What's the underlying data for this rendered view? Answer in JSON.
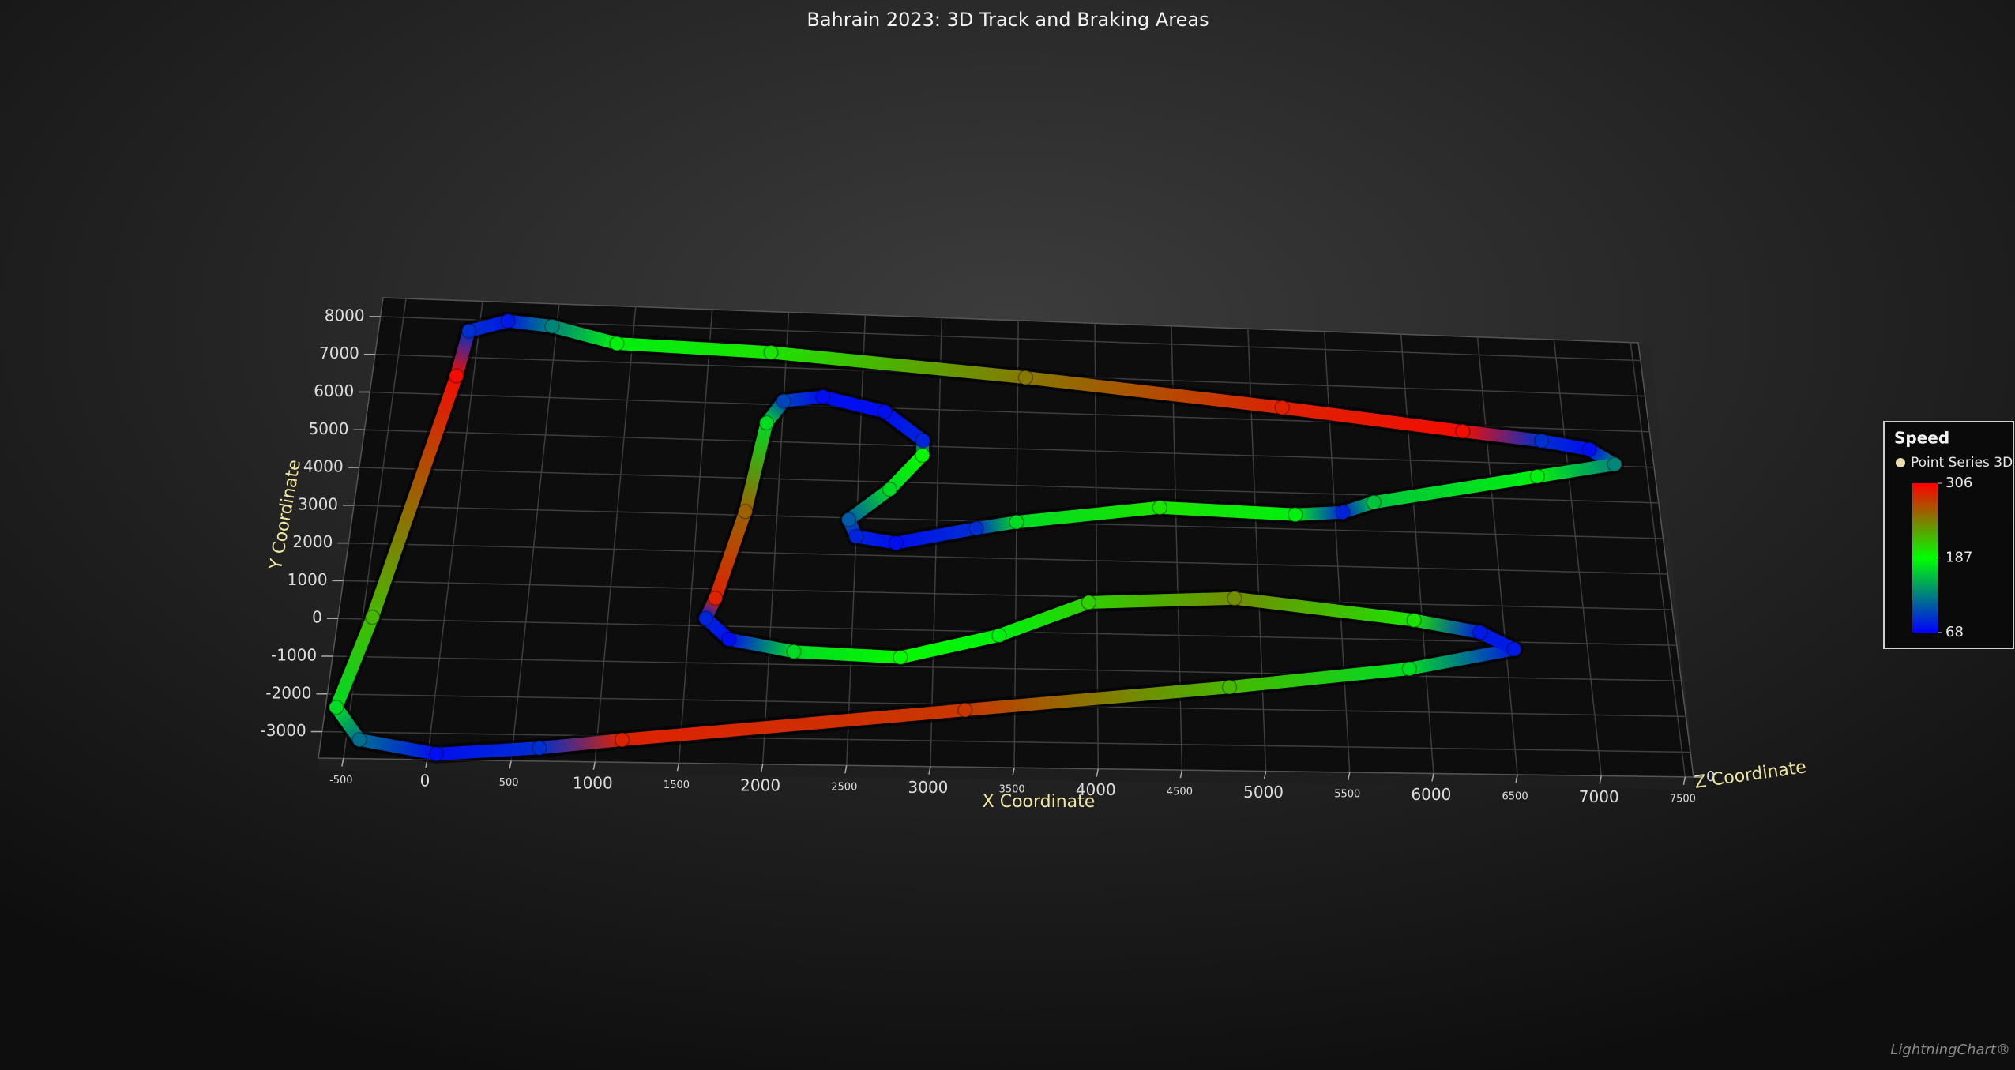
{
  "chart_data": {
    "type": "track3d",
    "title": "Bahrain 2023: 3D Track and Braking Areas",
    "x_label": "X Coordinate",
    "y_label": "Y Coordinate",
    "z_label": "Z Coordinate",
    "xlim": [
      -650,
      7550
    ],
    "ylim": [
      -3700,
      8500
    ],
    "xticks": [
      -500,
      0,
      500,
      1000,
      1500,
      2000,
      2500,
      3000,
      3500,
      4000,
      4500,
      5000,
      5500,
      6000,
      6500,
      7000,
      7500
    ],
    "yticks": [
      -3000,
      -2000,
      -1000,
      0,
      1000,
      2000,
      3000,
      4000,
      5000,
      6000,
      7000,
      8000
    ],
    "zticks": [
      0
    ],
    "grid": true,
    "series": [
      {
        "name": "Point Series 3D",
        "x": [
          6550,
          5900,
          4800,
          3200,
          1150,
          660,
          50,
          -420,
          -585,
          -440,
          -110,
          -65,
          180,
          470,
          900,
          1900,
          3550,
          5200,
          6350,
          6850,
          7150,
          7300,
          6800,
          5750,
          5550,
          5250,
          4400,
          3500,
          3250,
          2750,
          2500,
          2450,
          2700,
          2900,
          2900,
          2650,
          2250,
          2000,
          1900,
          1800,
          1650,
          1600,
          1750,
          2150,
          2800,
          3400,
          3950,
          4850,
          5950,
          6350
        ],
        "y": [
          -200,
          -800,
          -1400,
          -2150,
          -3100,
          -3350,
          -3550,
          -3200,
          -2350,
          50,
          6500,
          7700,
          8000,
          7900,
          7500,
          7400,
          6950,
          6350,
          5850,
          5650,
          5450,
          5050,
          4650,
          3800,
          3500,
          3400,
          3500,
          3000,
          2800,
          2350,
          2500,
          2950,
          3800,
          4750,
          5150,
          5900,
          6250,
          6100,
          5500,
          3100,
          750,
          200,
          -350,
          -650,
          -750,
          -100,
          850,
          1050,
          550,
          250
        ],
        "speed": [
          80,
          170,
          220,
          280,
          290,
          90,
          75,
          120,
          170,
          220,
          300,
          90,
          80,
          130,
          180,
          200,
          250,
          290,
          300,
          90,
          75,
          130,
          180,
          160,
          85,
          180,
          200,
          170,
          90,
          75,
          85,
          110,
          170,
          190,
          85,
          75,
          75,
          100,
          170,
          260,
          290,
          85,
          75,
          170,
          190,
          180,
          210,
          240,
          200,
          80
        ]
      }
    ],
    "colorscale": {
      "title": "Speed",
      "ticks": [
        68,
        187,
        306
      ],
      "colors": [
        "#0000ff",
        "#00ff00",
        "#ff0000"
      ]
    },
    "watermark": "LightningChart®"
  }
}
